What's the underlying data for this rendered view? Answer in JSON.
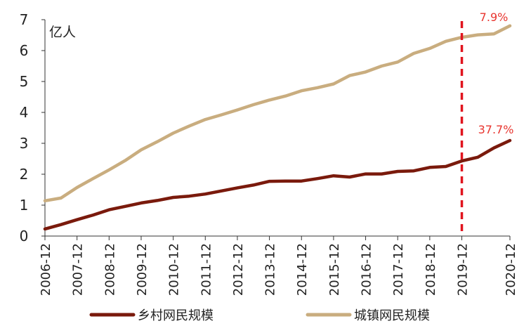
{
  "chart_data": {
    "type": "line",
    "unit_label": "亿人",
    "x": [
      "2006-12",
      "2007-06",
      "2007-12",
      "2008-06",
      "2008-12",
      "2009-06",
      "2009-12",
      "2010-06",
      "2010-12",
      "2011-06",
      "2011-12",
      "2012-06",
      "2012-12",
      "2013-06",
      "2013-12",
      "2014-06",
      "2014-12",
      "2015-06",
      "2015-12",
      "2016-06",
      "2016-12",
      "2017-06",
      "2017-12",
      "2018-06",
      "2018-12",
      "2019-06",
      "2019-12",
      "2020-03",
      "2020-06",
      "2020-12"
    ],
    "x_tick_labels": [
      "2006-12",
      "2007-12",
      "2008-12",
      "2009-12",
      "2010-12",
      "2011-12",
      "2012-12",
      "2013-12",
      "2014-12",
      "2015-12",
      "2016-12",
      "2017-12",
      "2018-12",
      "2019-12",
      "2020-12"
    ],
    "ylim": [
      0,
      7
    ],
    "y_ticks": [
      0,
      1,
      2,
      3,
      4,
      5,
      6,
      7
    ],
    "grid": false,
    "legend_position": "bottom",
    "series": [
      {
        "name": "乡村网民规模",
        "color": "#7a1a0c",
        "values": [
          0.23,
          0.37,
          0.53,
          0.68,
          0.85,
          0.96,
          1.07,
          1.15,
          1.25,
          1.29,
          1.36,
          1.46,
          1.56,
          1.65,
          1.77,
          1.78,
          1.78,
          1.86,
          1.95,
          1.91,
          2.01,
          2.01,
          2.09,
          2.11,
          2.22,
          2.25,
          2.43,
          2.55,
          2.85,
          3.09
        ]
      },
      {
        "name": "城镇网民规模",
        "color": "#c9ad7f",
        "values": [
          1.14,
          1.23,
          1.57,
          1.86,
          2.14,
          2.44,
          2.79,
          3.05,
          3.33,
          3.56,
          3.77,
          3.92,
          4.08,
          4.25,
          4.4,
          4.53,
          4.7,
          4.8,
          4.92,
          5.19,
          5.31,
          5.5,
          5.63,
          5.91,
          6.07,
          6.3,
          6.43,
          6.51,
          6.54,
          6.8
        ]
      }
    ],
    "annotations": [
      {
        "text": "7.9%",
        "color": "#e8352f"
      },
      {
        "text": "37.7%",
        "color": "#e8352f"
      }
    ],
    "marker_line": {
      "x": "2019-12",
      "color": "#e0141e",
      "style": "dashed"
    }
  }
}
